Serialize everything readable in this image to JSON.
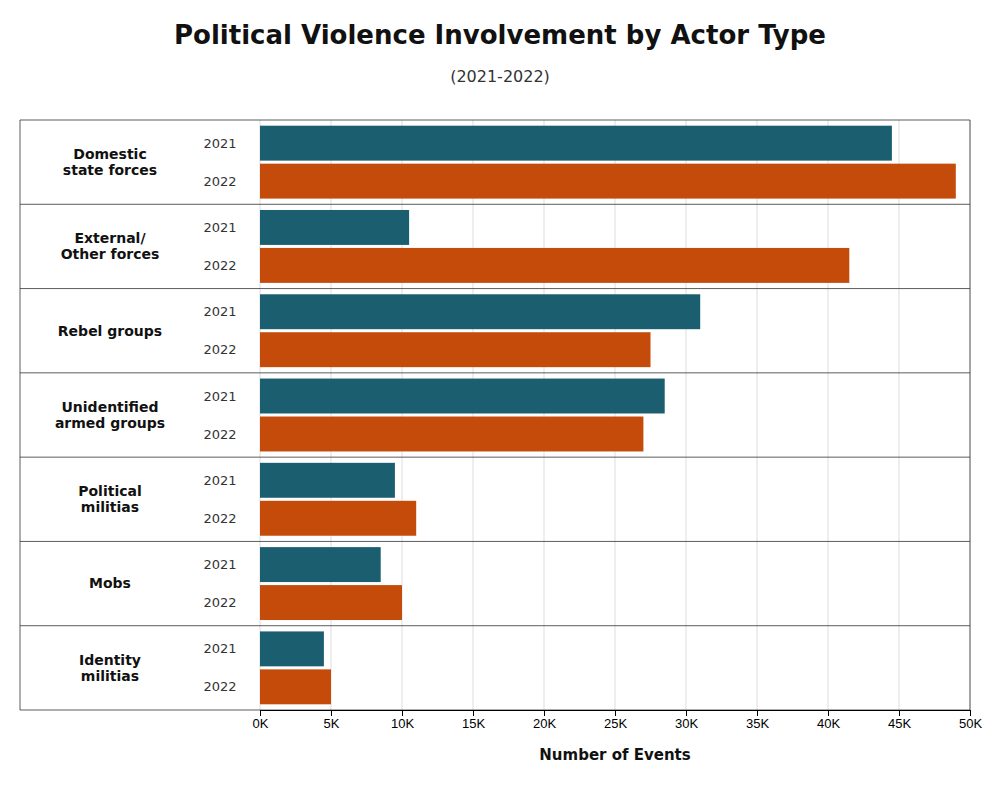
{
  "chart_data": {
    "type": "bar",
    "orientation": "horizontal",
    "title": "Political Violence Involvement by Actor Type",
    "subtitle": "(2021-2022)",
    "xlabel": "Number of Events",
    "categories": [
      "Domestic\nstate forces",
      "External/\nOther forces",
      "Rebel groups",
      "Unidentified\narmed groups",
      "Political\nmilitias",
      "Mobs",
      "Identity\nmilitias"
    ],
    "series": [
      {
        "name": "2021",
        "color": "#1b5e70",
        "values": [
          44500,
          10500,
          31000,
          28500,
          9500,
          8500,
          4500
        ]
      },
      {
        "name": "2022",
        "color": "#c44b0a",
        "values": [
          49000,
          41500,
          27500,
          27000,
          11000,
          10000,
          5000
        ]
      }
    ],
    "xlim": [
      0,
      50000
    ],
    "xticks": [
      {
        "value": 0,
        "label": "0K"
      },
      {
        "value": 5000,
        "label": "5K"
      },
      {
        "value": 10000,
        "label": "10K"
      },
      {
        "value": 15000,
        "label": "15K"
      },
      {
        "value": 20000,
        "label": "20K"
      },
      {
        "value": 25000,
        "label": "25K"
      },
      {
        "value": 30000,
        "label": "30K"
      },
      {
        "value": 35000,
        "label": "35K"
      },
      {
        "value": 40000,
        "label": "40K"
      },
      {
        "value": 45000,
        "label": "45K"
      },
      {
        "value": 50000,
        "label": "50K"
      }
    ],
    "grid": true
  }
}
